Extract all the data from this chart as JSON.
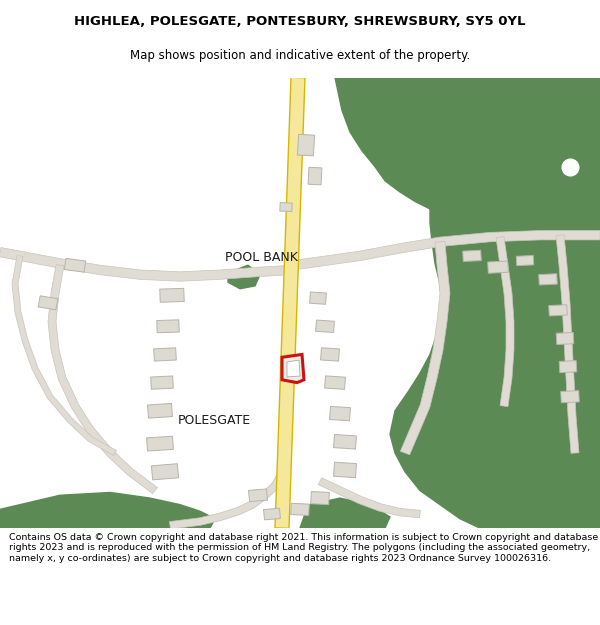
{
  "title": "HIGHLEA, POLESGATE, PONTESBURY, SHREWSBURY, SY5 0YL",
  "subtitle": "Map shows position and indicative extent of the property.",
  "footer": "Contains OS data © Crown copyright and database right 2021. This information is subject to Crown copyright and database rights 2023 and is reproduced with the permission of HM Land Registry. The polygons (including the associated geometry, namely x, y co-ordinates) are subject to Crown copyright and database rights 2023 Ordnance Survey 100026316.",
  "green_color": "#5c8a55",
  "road_fill": "#f5e89a",
  "road_edge": "#d4b800",
  "road_gray_fill": "#e0dcd4",
  "road_gray_edge": "#c8c4bc",
  "building_fill": "#dddad2",
  "building_edge": "#b8b4ac",
  "highlight_fill": "#f0ede6",
  "highlight_edge": "#cc1111",
  "map_bg": "#f8f6f2",
  "title_size": 9.5,
  "subtitle_size": 8.5,
  "footer_size": 6.8,
  "label_pool_bank": "POOL BANK",
  "label_polesgate": "POLESGATE"
}
